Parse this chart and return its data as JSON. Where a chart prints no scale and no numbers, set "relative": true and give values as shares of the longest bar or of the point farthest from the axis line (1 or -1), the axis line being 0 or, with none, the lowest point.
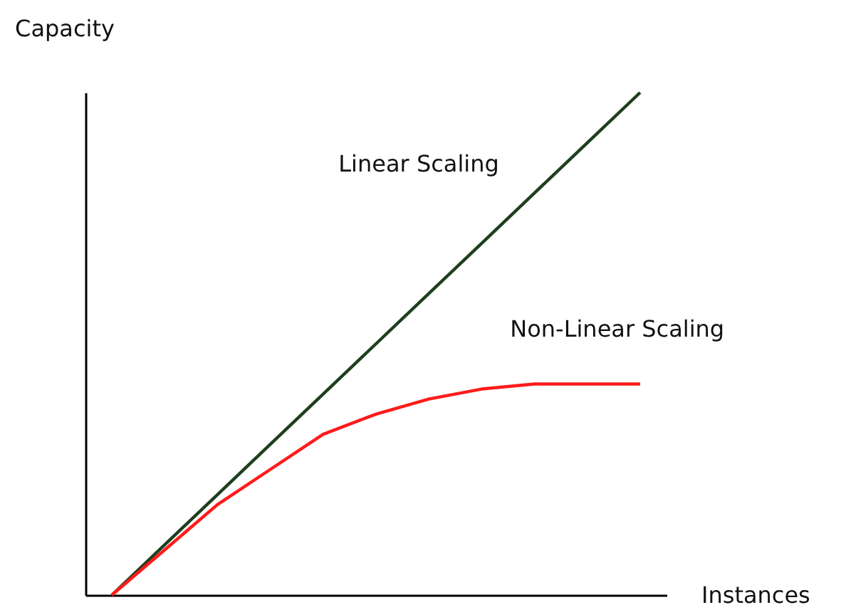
{
  "chart_data": {
    "type": "line",
    "xlabel": "Instances",
    "ylabel": "Capacity",
    "relative": true,
    "grid": false,
    "legend": false,
    "marker": "none",
    "line_style": "solid",
    "categories": [
      null,
      null,
      null,
      null,
      null,
      null,
      null,
      null,
      null,
      null,
      null
    ],
    "series": [
      {
        "name": "Linear Scaling",
        "color": "#1e3f1e",
        "values": [
          0,
          0.1,
          0.2,
          0.3,
          0.4,
          0.5,
          0.6,
          0.7,
          0.8,
          0.9,
          1
        ]
      },
      {
        "name": "Non-Linear Scaling",
        "color": "#ff1a1a",
        "values": [
          0,
          0.09,
          0.18,
          0.25,
          0.32,
          0.36,
          0.39,
          0.41,
          0.42,
          0.42,
          0.42
        ]
      }
    ]
  }
}
